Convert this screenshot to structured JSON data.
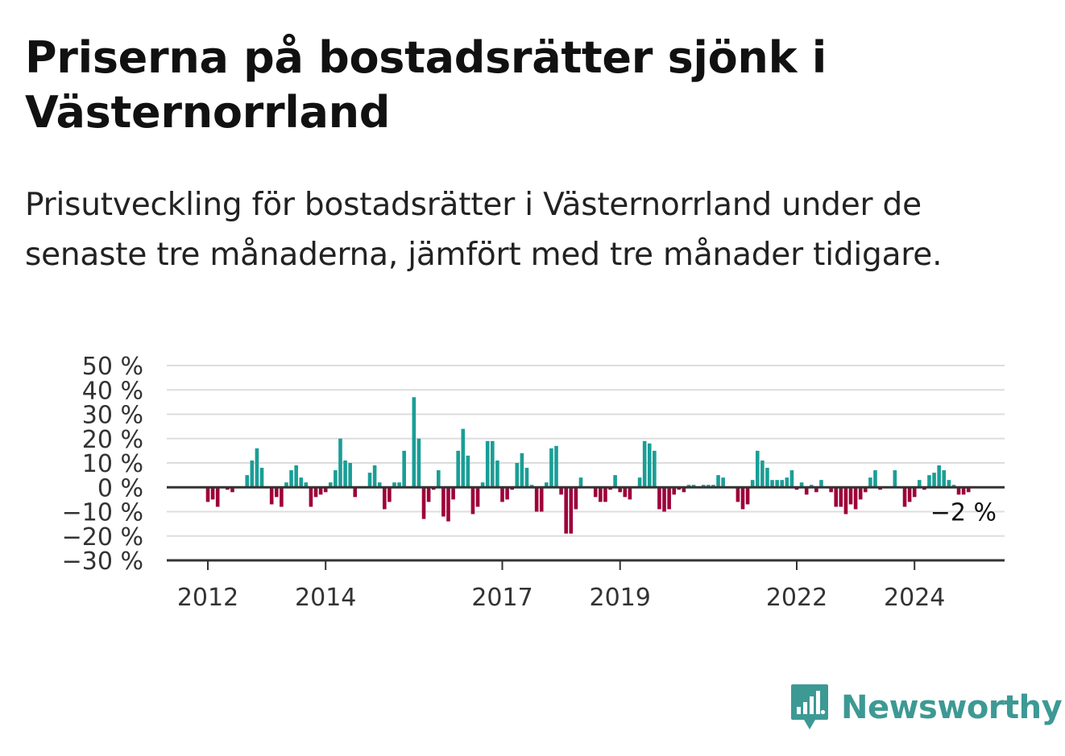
{
  "header": {
    "title": "Priserna på bostadsrätter sjönk i Västernorrland",
    "subtitle": "Prisutveckling för bostadsrätter i Västernorrland under de senaste tre månaderna, jämfört med tre månader tidigare."
  },
  "brand": {
    "name": "Newsworthy",
    "icon": "newsworthy-logo-icon",
    "color": "#3d9994"
  },
  "chart_data": {
    "type": "bar",
    "title": "",
    "xlabel": "",
    "ylabel": "",
    "unit": "%",
    "ylim": [
      -30,
      50
    ],
    "yticks": [
      50,
      40,
      30,
      20,
      10,
      0,
      -10,
      -20,
      -30
    ],
    "ytick_labels": [
      "50 %",
      "40 %",
      "30 %",
      "20 %",
      "10 %",
      "0 %",
      "−10 %",
      "−20 %",
      "−30 %"
    ],
    "xticks": [
      2012,
      2014,
      2017,
      2019,
      2022,
      2024
    ],
    "xtick_labels": [
      "2012",
      "2014",
      "2017",
      "2019",
      "2022",
      "2024"
    ],
    "grid": true,
    "legend": "none",
    "colors": {
      "positive": "#1a9e96",
      "negative": "#9e0039",
      "grid": "#dddddd",
      "axis": "#333333"
    },
    "annotation": {
      "text": "−2 %",
      "value": -2,
      "target": "last-bar"
    },
    "x_start": "2012-01",
    "x_step": "month",
    "values": [
      -6,
      -5,
      -8,
      0,
      -1,
      -2,
      0,
      0,
      5,
      11,
      16,
      8,
      0,
      -7,
      -4,
      -8,
      2,
      7,
      9,
      4,
      2,
      -8,
      -4,
      -3,
      -2,
      2,
      7,
      20,
      11,
      10,
      -4,
      0,
      0,
      6,
      9,
      2,
      -9,
      -6,
      2,
      2,
      15,
      0,
      37,
      20,
      -13,
      -6,
      -1,
      7,
      -12,
      -14,
      -5,
      15,
      24,
      13,
      -11,
      -8,
      2,
      19,
      19,
      11,
      -6,
      -5,
      -1,
      10,
      14,
      8,
      1,
      -10,
      -10,
      2,
      16,
      17,
      -3,
      -19,
      -19,
      -9,
      4,
      0,
      0,
      -4,
      -6,
      -6,
      -1,
      5,
      -2,
      -4,
      -5,
      0,
      4,
      19,
      18,
      15,
      -9,
      -10,
      -9,
      -3,
      -1,
      -2,
      1,
      1,
      0,
      1,
      1,
      1,
      5,
      4,
      0,
      0,
      -6,
      -9,
      -7,
      3,
      15,
      11,
      8,
      3,
      3,
      3,
      4,
      7,
      -1,
      2,
      -3,
      1,
      -2,
      3,
      0,
      -2,
      -8,
      -8,
      -11,
      -7,
      -9,
      -5,
      -2,
      4,
      7,
      -1,
      0,
      0,
      7,
      0,
      -8,
      -6,
      -4,
      3,
      -1,
      5,
      6,
      9,
      7,
      3,
      1,
      -3,
      -3,
      -2
    ]
  }
}
